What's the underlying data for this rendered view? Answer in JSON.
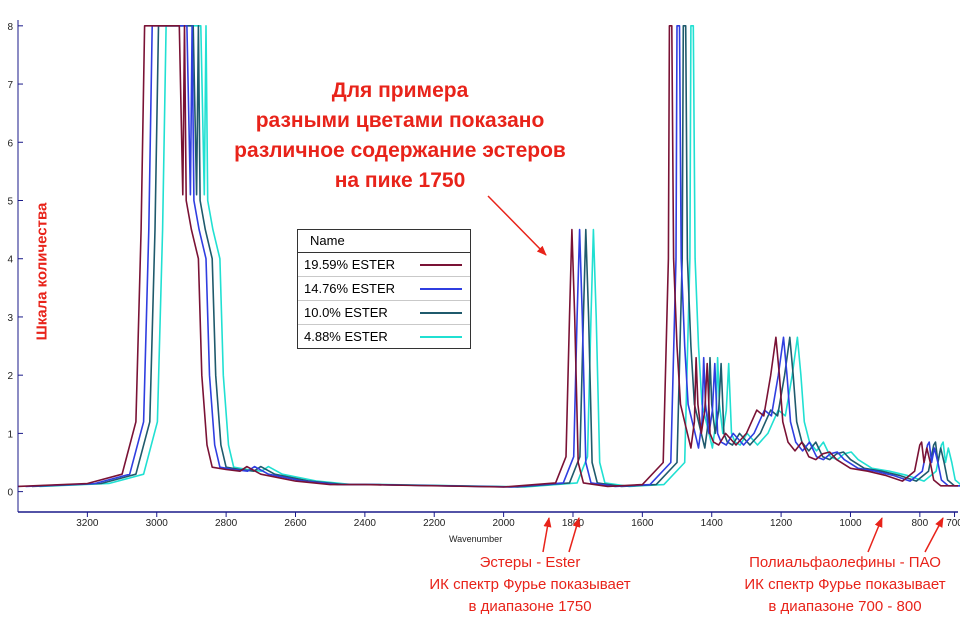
{
  "chart_data": {
    "type": "line",
    "title": "Для примера\nразными цветами показано\nразличное содержание эстеров\nна пике 1750",
    "xlabel": "Wavenumber",
    "ylabel": "Шкала количества",
    "xlim": [
      3400,
      690
    ],
    "ylim": [
      -0.35,
      8.1
    ],
    "x_reversed": true,
    "x_ticks": [
      3200,
      3000,
      2800,
      2600,
      2400,
      2200,
      2000,
      1800,
      1600,
      1400,
      1200,
      1000,
      800,
      700
    ],
    "y_ticks": [
      0,
      1,
      2,
      3,
      4,
      5,
      6,
      7,
      8
    ],
    "grid": false,
    "legend_position": "center-left",
    "legend_title": "Name",
    "series": [
      {
        "name": "19.59% ESTER",
        "color": "#7a1235",
        "shift": 0,
        "values": [
          [
            3400,
            0.09
          ],
          [
            3200,
            0.14
          ],
          [
            3100,
            0.3
          ],
          [
            3060,
            1.2
          ],
          [
            3045,
            4.5
          ],
          [
            3035,
            8.0
          ],
          [
            2935,
            8.0
          ],
          [
            2925,
            5.1
          ],
          [
            2920,
            8.0
          ],
          [
            2915,
            5.0
          ],
          [
            2900,
            4.5
          ],
          [
            2880,
            4.0
          ],
          [
            2870,
            2.0
          ],
          [
            2855,
            0.8
          ],
          [
            2840,
            0.42
          ],
          [
            2800,
            0.38
          ],
          [
            2760,
            0.35
          ],
          [
            2740,
            0.43
          ],
          [
            2700,
            0.3
          ],
          [
            2600,
            0.18
          ],
          [
            2500,
            0.12
          ],
          [
            2400,
            0.12
          ],
          [
            2000,
            0.08
          ],
          [
            1850,
            0.15
          ],
          [
            1820,
            0.6
          ],
          [
            1810,
            3.0
          ],
          [
            1803,
            4.5
          ],
          [
            1795,
            3.0
          ],
          [
            1785,
            0.5
          ],
          [
            1770,
            0.15
          ],
          [
            1700,
            0.09
          ],
          [
            1600,
            0.12
          ],
          [
            1540,
            0.5
          ],
          [
            1525,
            4.0
          ],
          [
            1522,
            8.0
          ],
          [
            1515,
            8.0
          ],
          [
            1510,
            4.0
          ],
          [
            1500,
            2.5
          ],
          [
            1490,
            1.5
          ],
          [
            1470,
            1.0
          ],
          [
            1460,
            0.75
          ],
          [
            1450,
            1.2
          ],
          [
            1445,
            2.3
          ],
          [
            1440,
            1.5
          ],
          [
            1430,
            1.0
          ],
          [
            1420,
            1.4
          ],
          [
            1413,
            2.2
          ],
          [
            1405,
            1.0
          ],
          [
            1395,
            0.85
          ],
          [
            1380,
            0.8
          ],
          [
            1360,
            1.0
          ],
          [
            1330,
            0.8
          ],
          [
            1300,
            1.0
          ],
          [
            1270,
            1.4
          ],
          [
            1250,
            1.3
          ],
          [
            1230,
            2.0
          ],
          [
            1215,
            2.65
          ],
          [
            1205,
            2.0
          ],
          [
            1195,
            1.2
          ],
          [
            1180,
            0.85
          ],
          [
            1160,
            0.7
          ],
          [
            1140,
            0.85
          ],
          [
            1120,
            0.6
          ],
          [
            1100,
            0.55
          ],
          [
            1080,
            0.65
          ],
          [
            1060,
            0.68
          ],
          [
            1040,
            0.55
          ],
          [
            1000,
            0.4
          ],
          [
            950,
            0.35
          ],
          [
            900,
            0.28
          ],
          [
            850,
            0.18
          ],
          [
            815,
            0.35
          ],
          [
            800,
            0.8
          ],
          [
            795,
            0.85
          ],
          [
            788,
            0.5
          ],
          [
            780,
            0.75
          ],
          [
            770,
            0.5
          ],
          [
            760,
            0.2
          ],
          [
            740,
            0.1
          ],
          [
            690,
            0.1
          ]
        ]
      },
      {
        "name": "14.76% ESTER",
        "color": "#2f3ee0",
        "shift": -22
      },
      {
        "name": "10.0% ESTER",
        "color": "#1f5a6c",
        "shift": -40
      },
      {
        "name": "4.88% ESTER",
        "color": "#20e0d2",
        "shift": -62
      }
    ]
  },
  "annotations": {
    "title_lines": [
      "Для примера",
      "разными цветами показано",
      "различное содержание эстеров",
      "на пике 1750"
    ],
    "ester_lines": [
      "Эстеры - Ester",
      "ИК спектр Фурье показывает",
      "в диапазоне 1750"
    ],
    "pao_lines": [
      "Полиальфаолефины - ПАО",
      "ИК спектр Фурье показывает",
      "в диапазоне 700 - 800"
    ]
  },
  "colors": {
    "annotation": "#e8231a",
    "axis": "#1a1a8a"
  }
}
